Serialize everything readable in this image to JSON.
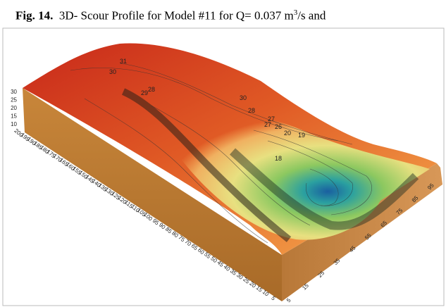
{
  "caption": {
    "label": "Fig. 14.",
    "text": "3D- Scour Profile for Model #11 for Q= 0.037 m",
    "sup": "3",
    "rest": "/s and"
  },
  "figure": {
    "zticks": [
      "30",
      "25",
      "20",
      "15",
      "10"
    ],
    "xticks": [
      "200",
      "195",
      "190",
      "185",
      "180",
      "175",
      "170",
      "165",
      "160",
      "155",
      "150",
      "145",
      "140",
      "135",
      "130",
      "125",
      "120",
      "115",
      "110",
      "105",
      "100",
      "95",
      "90",
      "85",
      "80",
      "75",
      "70",
      "65",
      "60",
      "55",
      "50",
      "45",
      "40",
      "35",
      "30",
      "25",
      "20",
      "15",
      "10",
      "5"
    ],
    "yticks": [
      "5",
      "15",
      "25",
      "35",
      "45",
      "55",
      "65",
      "75",
      "85",
      "95"
    ],
    "contour_labels": [
      "31",
      "30",
      "29",
      "30",
      "28",
      "27",
      "26",
      "20",
      "19",
      "18",
      "27",
      "28"
    ]
  }
}
